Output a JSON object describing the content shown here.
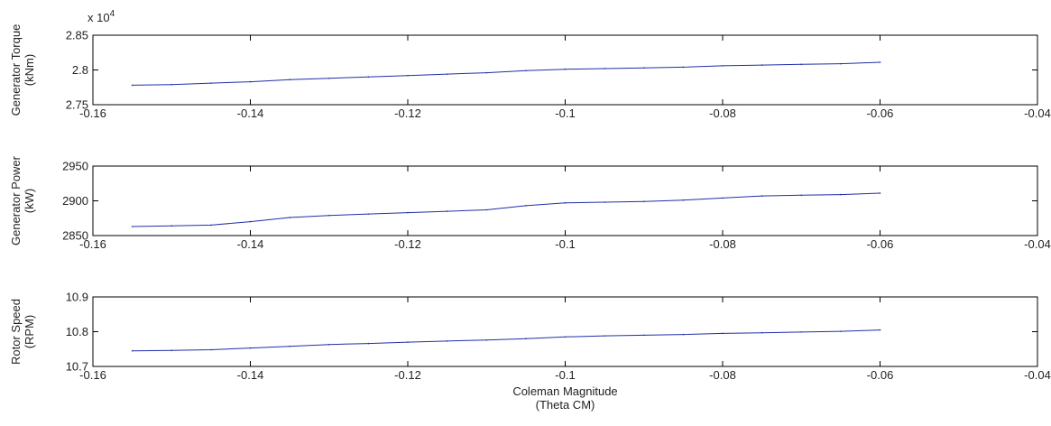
{
  "colors": {
    "background": "#ffffff",
    "axes": "#000000",
    "line": "#1f2fa8"
  },
  "chart_data": [
    {
      "type": "line",
      "title": "",
      "ylabel_lines": [
        "Generator Torque",
        "(kNm)"
      ],
      "xlabel_lines": [],
      "xlim": [
        -0.16,
        -0.04
      ],
      "ylim": [
        2.75,
        2.85
      ],
      "xticks": [
        -0.16,
        -0.14,
        -0.12,
        -0.1,
        -0.08,
        -0.06,
        -0.04
      ],
      "xtick_labels": [
        "-0.16",
        "-0.14",
        "-0.12",
        "-0.1",
        "-0.08",
        "-0.06",
        "-0.04"
      ],
      "yticks": [
        2.75,
        2.8,
        2.85
      ],
      "ytick_labels": [
        "2.75",
        "2.8",
        "2.85"
      ],
      "exponent_label": {
        "base": "x 10",
        "power": "4"
      },
      "grid": false,
      "series": [
        {
          "x": [
            -0.155,
            -0.15,
            -0.145,
            -0.14,
            -0.135,
            -0.13,
            -0.125,
            -0.12,
            -0.115,
            -0.11,
            -0.105,
            -0.1,
            -0.095,
            -0.09,
            -0.085,
            -0.08,
            -0.075,
            -0.07,
            -0.065,
            -0.06
          ],
          "y": [
            2.778,
            2.779,
            2.781,
            2.783,
            2.786,
            2.788,
            2.79,
            2.792,
            2.794,
            2.796,
            2.799,
            2.801,
            2.802,
            2.803,
            2.804,
            2.806,
            2.807,
            2.808,
            2.809,
            2.811
          ]
        }
      ]
    },
    {
      "type": "line",
      "title": "",
      "ylabel_lines": [
        "Generator Power",
        "(kW)"
      ],
      "xlabel_lines": [],
      "xlim": [
        -0.16,
        -0.04
      ],
      "ylim": [
        2850,
        2950
      ],
      "xticks": [
        -0.16,
        -0.14,
        -0.12,
        -0.1,
        -0.08,
        -0.06,
        -0.04
      ],
      "xtick_labels": [
        "-0.16",
        "-0.14",
        "-0.12",
        "-0.1",
        "-0.08",
        "-0.06",
        "-0.04"
      ],
      "yticks": [
        2850,
        2900,
        2950
      ],
      "ytick_labels": [
        "2850",
        "2900",
        "2950"
      ],
      "grid": false,
      "series": [
        {
          "x": [
            -0.155,
            -0.15,
            -0.145,
            -0.14,
            -0.135,
            -0.13,
            -0.125,
            -0.12,
            -0.115,
            -0.11,
            -0.105,
            -0.1,
            -0.095,
            -0.09,
            -0.085,
            -0.08,
            -0.075,
            -0.07,
            -0.065,
            -0.06
          ],
          "y": [
            2863,
            2864,
            2865,
            2870,
            2876,
            2879,
            2881,
            2883,
            2885,
            2887,
            2893,
            2897,
            2898,
            2899,
            2901,
            2904,
            2907,
            2908,
            2909,
            2911
          ]
        }
      ]
    },
    {
      "type": "line",
      "title": "",
      "ylabel_lines": [
        "Rotor Speed",
        "(RPM)"
      ],
      "xlabel_lines": [
        "Coleman Magnitude",
        "(Theta CM)"
      ],
      "xlim": [
        -0.16,
        -0.04
      ],
      "ylim": [
        10.7,
        10.9
      ],
      "xticks": [
        -0.16,
        -0.14,
        -0.12,
        -0.1,
        -0.08,
        -0.06,
        -0.04
      ],
      "xtick_labels": [
        "-0.16",
        "-0.14",
        "-0.12",
        "-0.1",
        "-0.08",
        "-0.06",
        "-0.04"
      ],
      "yticks": [
        10.7,
        10.8,
        10.9
      ],
      "ytick_labels": [
        "10.7",
        "10.8",
        "10.9"
      ],
      "grid": false,
      "series": [
        {
          "x": [
            -0.155,
            -0.15,
            -0.145,
            -0.14,
            -0.135,
            -0.13,
            -0.125,
            -0.12,
            -0.115,
            -0.11,
            -0.105,
            -0.1,
            -0.095,
            -0.09,
            -0.085,
            -0.08,
            -0.075,
            -0.07,
            -0.065,
            -0.06
          ],
          "y": [
            10.745,
            10.746,
            10.748,
            10.753,
            10.758,
            10.763,
            10.766,
            10.77,
            10.773,
            10.776,
            10.78,
            10.785,
            10.788,
            10.79,
            10.792,
            10.795,
            10.797,
            10.799,
            10.801,
            10.805
          ]
        }
      ]
    }
  ]
}
